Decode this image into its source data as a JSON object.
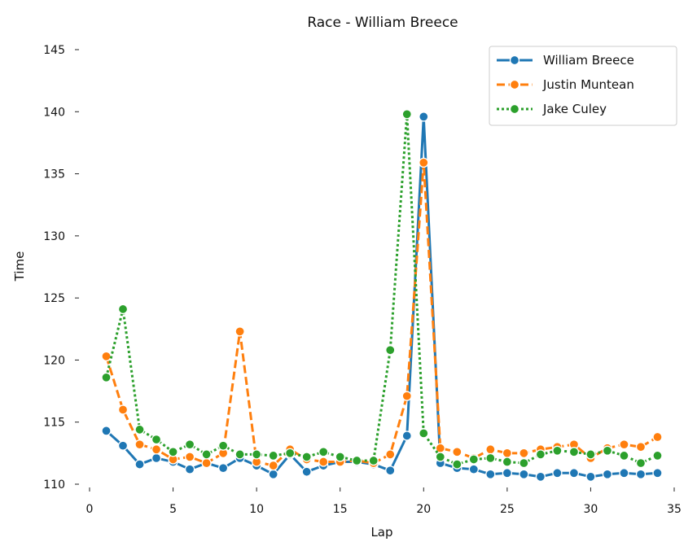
{
  "chart_data": {
    "type": "line",
    "title": "Race - William Breece",
    "xlabel": "Lap",
    "ylabel": "Time",
    "xlim": [
      0,
      35
    ],
    "ylim": [
      110,
      145
    ],
    "xticks": [
      0,
      5,
      10,
      15,
      20,
      25,
      30,
      35
    ],
    "yticks": [
      110,
      115,
      120,
      125,
      130,
      135,
      140,
      145
    ],
    "grid": false,
    "legend_position": "top-right",
    "x": [
      1,
      2,
      3,
      4,
      5,
      6,
      7,
      8,
      9,
      10,
      11,
      12,
      13,
      14,
      15,
      16,
      17,
      18,
      19,
      20,
      21,
      22,
      23,
      24,
      25,
      26,
      27,
      28,
      29,
      30,
      31,
      32,
      33,
      34
    ],
    "series": [
      {
        "name": "William Breece",
        "color": "#1f77b4",
        "line_style": "solid",
        "values": [
          114.3,
          113.1,
          111.6,
          112.1,
          111.8,
          111.2,
          111.7,
          111.3,
          112.1,
          111.5,
          110.8,
          112.4,
          111.0,
          111.5,
          111.8,
          111.8,
          111.6,
          111.1,
          113.9,
          139.6,
          111.7,
          111.3,
          111.2,
          110.8,
          110.9,
          110.8,
          110.6,
          110.9,
          110.9,
          110.6,
          110.8,
          110.9,
          110.8,
          110.9
        ]
      },
      {
        "name": "Justin Muntean",
        "color": "#ff7f0e",
        "line_style": "dashed",
        "values": [
          120.3,
          116.0,
          113.2,
          112.8,
          112.0,
          112.2,
          111.7,
          112.5,
          122.3,
          111.8,
          111.5,
          112.8,
          112.0,
          111.8,
          111.8,
          111.9,
          111.7,
          112.4,
          117.1,
          135.9,
          112.9,
          112.6,
          112.1,
          112.8,
          112.5,
          112.5,
          112.8,
          113.0,
          113.2,
          112.1,
          112.9,
          113.2,
          113.0,
          113.8
        ]
      },
      {
        "name": "Jake Culey",
        "color": "#2ca02c",
        "line_style": "dotted",
        "values": [
          118.6,
          124.1,
          114.4,
          113.6,
          112.6,
          113.2,
          112.4,
          113.1,
          112.4,
          112.4,
          112.3,
          112.5,
          112.2,
          112.6,
          112.2,
          111.9,
          111.9,
          120.8,
          139.8,
          114.1,
          112.2,
          111.6,
          112.0,
          112.1,
          111.8,
          111.7,
          112.4,
          112.7,
          112.6,
          112.4,
          112.7,
          112.3,
          111.7,
          112.3
        ]
      }
    ]
  }
}
